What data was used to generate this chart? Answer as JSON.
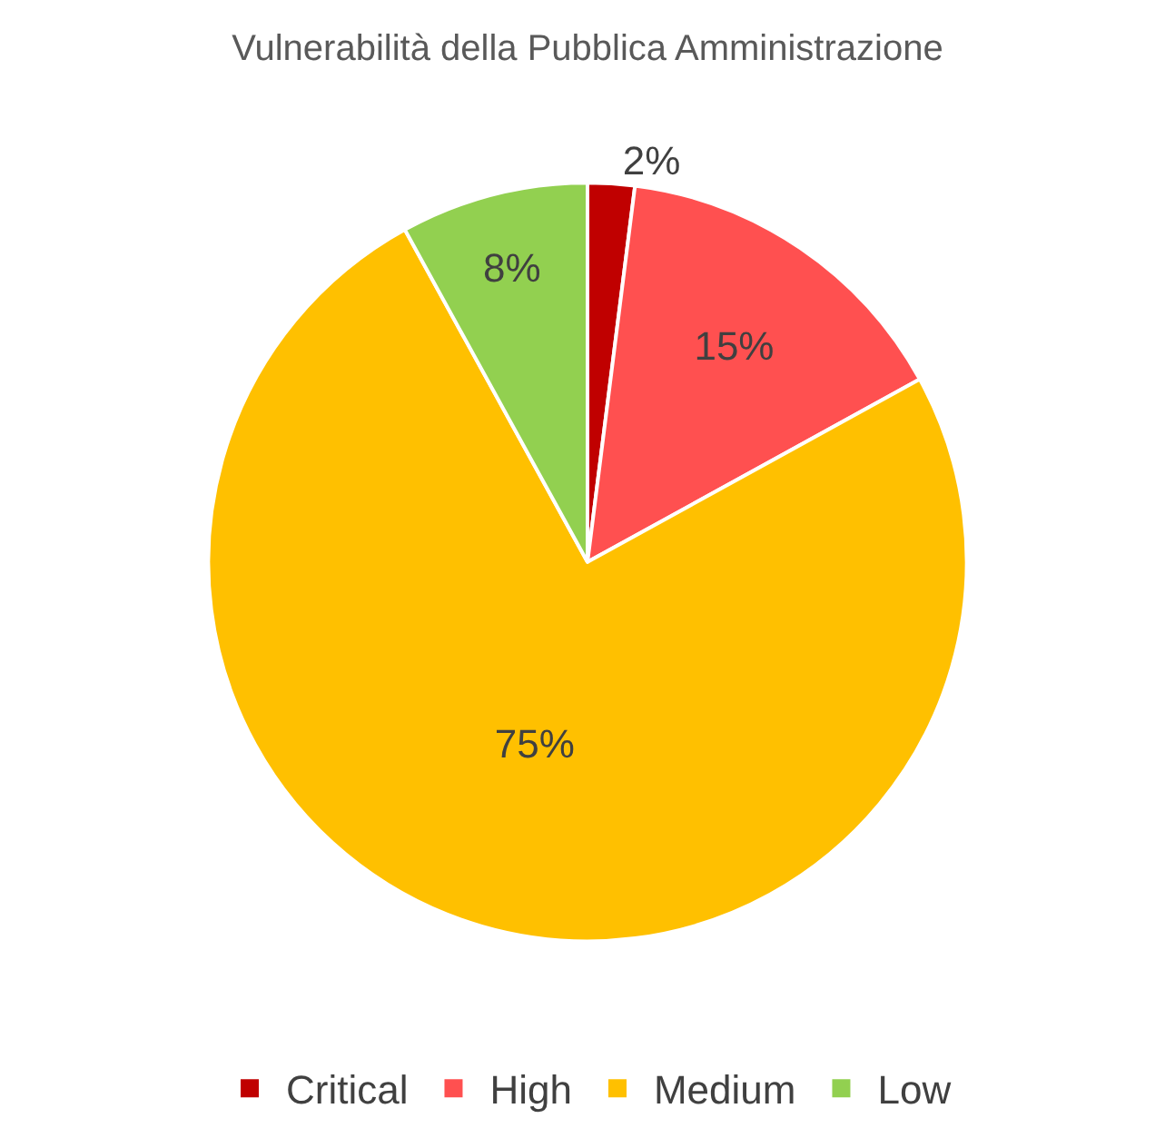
{
  "chart_data": {
    "type": "pie",
    "title": "Vulnerabilità della Pubblica Amministrazione",
    "categories": [
      "Critical",
      "High",
      "Medium",
      "Low"
    ],
    "values": [
      2,
      15,
      75,
      8
    ],
    "colors": [
      "#c00000",
      "#ff5050",
      "#ffc000",
      "#92d050"
    ],
    "value_labels": [
      "2%",
      "15%",
      "75%",
      "8%"
    ],
    "legend": "bottom"
  }
}
